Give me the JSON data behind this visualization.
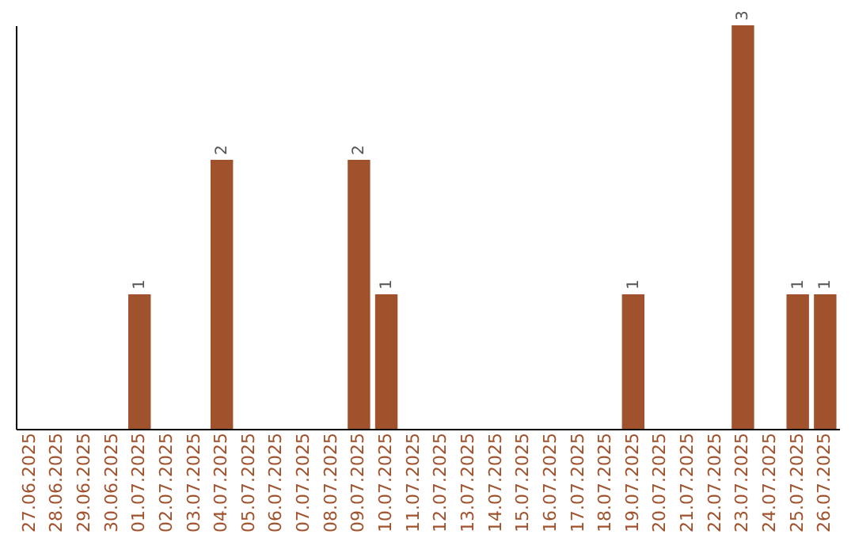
{
  "chart_data": {
    "type": "bar",
    "categories": [
      "27.06.2025",
      "28.06.2025",
      "29.06.2025",
      "30.06.2025",
      "01.07.2025",
      "02.07.2025",
      "03.07.2025",
      "04.07.2025",
      "05.07.2025",
      "06.07.2025",
      "07.07.2025",
      "08.07.2025",
      "09.07.2025",
      "10.07.2025",
      "11.07.2025",
      "12.07.2025",
      "13.07.2025",
      "14.07.2025",
      "15.07.2025",
      "16.07.2025",
      "17.07.2025",
      "18.07.2025",
      "19.07.2025",
      "20.07.2025",
      "21.07.2025",
      "22.07.2025",
      "23.07.2025",
      "24.07.2025",
      "25.07.2025",
      "26.07.2025"
    ],
    "values": [
      0,
      0,
      0,
      0,
      1,
      0,
      0,
      2,
      0,
      0,
      0,
      0,
      2,
      1,
      0,
      0,
      0,
      0,
      0,
      0,
      0,
      0,
      1,
      0,
      0,
      0,
      3,
      0,
      1,
      1
    ],
    "color": "#a0522d",
    "value_labels": [
      null,
      null,
      null,
      null,
      "1",
      null,
      null,
      "2",
      null,
      null,
      null,
      null,
      "2",
      "1",
      null,
      null,
      null,
      null,
      null,
      null,
      null,
      null,
      "1",
      null,
      null,
      null,
      "3",
      null,
      "1",
      "1"
    ],
    "grid": false,
    "tick_labels": "x"
  }
}
